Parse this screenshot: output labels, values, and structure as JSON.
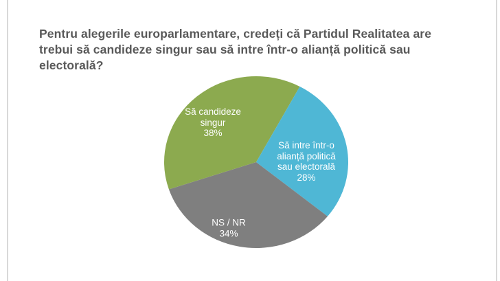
{
  "page": {
    "background": "#FFFFFF",
    "title": "Pentru alegerile europarlamentare, credeți că Partidul Realitatea are trebui să candideze singur sau să intre într-o alianță politică sau electorală?",
    "title_color": "#595959",
    "canvas_edge_color": "#D9D9D9"
  },
  "chart_data": {
    "type": "pie",
    "title": "",
    "legend": "none",
    "direction": "clockwise",
    "start_angle_deg": 251.5,
    "label_text_color": "#FFFFFF",
    "slices": [
      {
        "label": "Să candideze singur",
        "label_lines": [
          "Să candideze",
          "singur"
        ],
        "value": 38,
        "percent_label": "38%",
        "color": "#8CAA4F"
      },
      {
        "label": "Să intre într-o alianță politică sau electorală",
        "label_lines": [
          "Să intre într-o",
          "alianță politică",
          "sau electorală"
        ],
        "value": 28,
        "percent_label": "28%",
        "color": "#4FB7D5"
      },
      {
        "label": "NS / NR",
        "label_lines": [
          "NS / NR"
        ],
        "value": 34,
        "percent_label": "34%",
        "color": "#7F7F7F"
      }
    ]
  }
}
